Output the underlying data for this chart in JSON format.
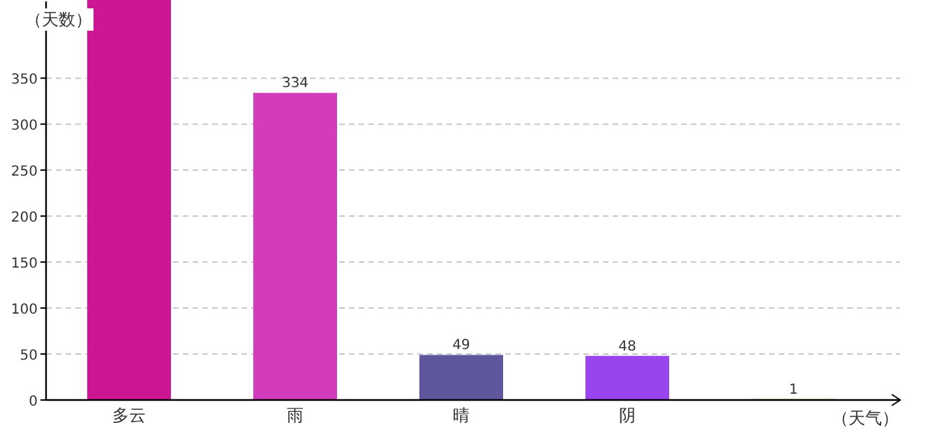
{
  "chart_data": {
    "type": "bar",
    "ylabel": "（天数）",
    "xlabel": "（天气）",
    "categories": [
      "多云",
      "雨",
      "晴",
      "阴",
      null
    ],
    "values": [
      435,
      334,
      49,
      48,
      1
    ],
    "colors": [
      "#cc1794",
      "#d23cbc",
      "#5f579e",
      "#9945ef",
      "#66bb33"
    ],
    "value_labels": [
      null,
      "334",
      "49",
      "48",
      "1"
    ],
    "ylim": [
      0,
      435
    ],
    "yticks": [
      0,
      50,
      100,
      150,
      200,
      250,
      300,
      350
    ],
    "grid": "y"
  }
}
